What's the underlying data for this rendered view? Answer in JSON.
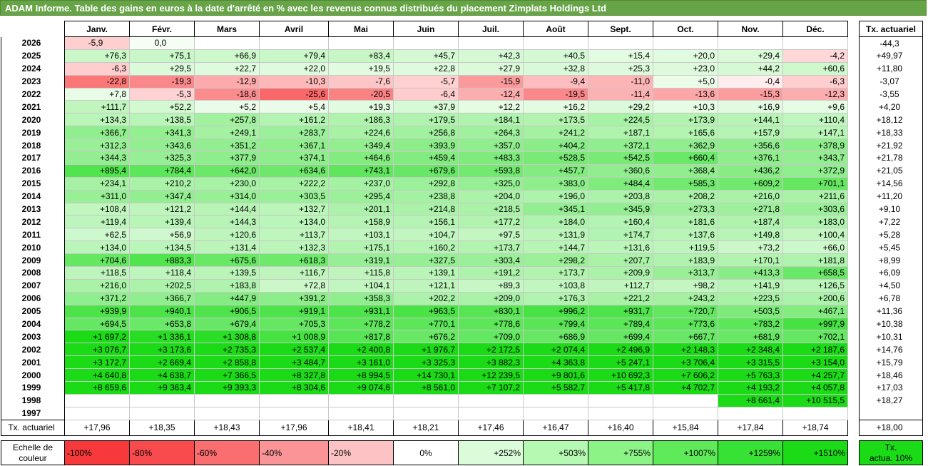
{
  "title": "ADAM Informe. Table des gains en euros à la date d'arrêté en % avec les revenus connus distribués du placement Zimplats Holdings Ltd",
  "headers": [
    "Janv.",
    "Févr.",
    "Mars",
    "Avril",
    "Mai",
    "Juin",
    "Juil.",
    "Août",
    "Sept.",
    "Oct.",
    "Nov.",
    "Déc."
  ],
  "rate_header": "Tx. actuariel",
  "rows": [
    {
      "year": "2026",
      "vals": [
        "-5,9",
        "0,0",
        "",
        "",
        "",
        "",
        "",
        "",
        "",
        "",
        "",
        ""
      ],
      "rate": "-44,3"
    },
    {
      "year": "2025",
      "vals": [
        "+76,3",
        "+75,1",
        "+66,9",
        "+79,4",
        "+83,4",
        "+45,7",
        "+42,3",
        "+40,5",
        "+15,4",
        "+20,0",
        "+29,4",
        "-4,2"
      ],
      "rate": "+49,97"
    },
    {
      "year": "2024",
      "vals": [
        "-6,3",
        "+29,5",
        "+22,7",
        "+22,0",
        "+19,5",
        "+22,8",
        "+27,9",
        "+32,8",
        "+25,3",
        "+23,0",
        "+44,2",
        "+60,6"
      ],
      "rate": "+11,80"
    },
    {
      "year": "2023",
      "vals": [
        "-22,8",
        "-19,3",
        "-12,9",
        "-10,3",
        "-7,6",
        "-5,7",
        "-15,9",
        "-9,4",
        "-11,0",
        "+5,0",
        "-0,4",
        "-6,3"
      ],
      "rate": "-3,07"
    },
    {
      "year": "2022",
      "vals": [
        "+7,8",
        "-5,3",
        "-18,6",
        "-25,6",
        "-20,5",
        "-6,4",
        "-12,4",
        "-19,5",
        "-11,4",
        "-13,6",
        "-15,3",
        "-12,3"
      ],
      "rate": "-3,55"
    },
    {
      "year": "2021",
      "vals": [
        "+111,7",
        "+52,2",
        "+5,2",
        "+5,4",
        "+19,3",
        "+37,9",
        "+12,2",
        "+16,2",
        "+29,2",
        "+10,3",
        "+16,9",
        "+9,6"
      ],
      "rate": "+4,20"
    },
    {
      "year": "2020",
      "vals": [
        "+134,3",
        "+138,5",
        "+257,8",
        "+161,2",
        "+186,3",
        "+179,5",
        "+184,1",
        "+173,5",
        "+224,5",
        "+173,9",
        "+144,1",
        "+110,4"
      ],
      "rate": "+18,12"
    },
    {
      "year": "2019",
      "vals": [
        "+366,7",
        "+341,3",
        "+249,1",
        "+283,7",
        "+224,6",
        "+256,8",
        "+264,3",
        "+241,2",
        "+187,1",
        "+165,6",
        "+157,9",
        "+147,1"
      ],
      "rate": "+18,33"
    },
    {
      "year": "2018",
      "vals": [
        "+312,3",
        "+343,6",
        "+351,2",
        "+367,1",
        "+349,4",
        "+393,9",
        "+357,0",
        "+404,2",
        "+372,1",
        "+362,9",
        "+356,6",
        "+378,9"
      ],
      "rate": "+21,92"
    },
    {
      "year": "2017",
      "vals": [
        "+344,3",
        "+325,3",
        "+377,9",
        "+374,1",
        "+464,6",
        "+459,4",
        "+483,3",
        "+528,5",
        "+542,5",
        "+660,4",
        "+376,1",
        "+343,7"
      ],
      "rate": "+21,78"
    },
    {
      "year": "2016",
      "vals": [
        "+895,4",
        "+784,4",
        "+642,0",
        "+634,6",
        "+743,1",
        "+679,6",
        "+593,8",
        "+457,7",
        "+360,6",
        "+368,4",
        "+436,2",
        "+372,9"
      ],
      "rate": "+21,05"
    },
    {
      "year": "2015",
      "vals": [
        "+234,1",
        "+210,2",
        "+230,0",
        "+222,2",
        "+237,0",
        "+292,8",
        "+325,0",
        "+383,0",
        "+484,4",
        "+585,3",
        "+609,2",
        "+701,1"
      ],
      "rate": "+14,56"
    },
    {
      "year": "2014",
      "vals": [
        "+311,0",
        "+347,4",
        "+314,0",
        "+303,5",
        "+295,4",
        "+238,8",
        "+204,0",
        "+196,0",
        "+203,8",
        "+208,2",
        "+216,0",
        "+211,6"
      ],
      "rate": "+11,20"
    },
    {
      "year": "2013",
      "vals": [
        "+108,4",
        "+121,2",
        "+144,4",
        "+132,7",
        "+201,1",
        "+214,8",
        "+218,5",
        "+345,1",
        "+345,9",
        "+273,3",
        "+271,8",
        "+303,6"
      ],
      "rate": "+9,10"
    },
    {
      "year": "2012",
      "vals": [
        "+119,4",
        "+139,4",
        "+144,3",
        "+134,0",
        "+158,9",
        "+156,1",
        "+177,2",
        "+184,0",
        "+160,4",
        "+181,6",
        "+187,4",
        "+183,0"
      ],
      "rate": "+7,22"
    },
    {
      "year": "2011",
      "vals": [
        "+62,5",
        "+56,9",
        "+120,6",
        "+113,7",
        "+103,1",
        "+104,7",
        "+97,5",
        "+131,9",
        "+174,7",
        "+137,6",
        "+149,8",
        "+100,4"
      ],
      "rate": "+5,28"
    },
    {
      "year": "2010",
      "vals": [
        "+134,0",
        "+134,5",
        "+131,4",
        "+132,3",
        "+175,1",
        "+160,2",
        "+173,7",
        "+144,7",
        "+131,6",
        "+119,5",
        "+73,2",
        "+66,0"
      ],
      "rate": "+5,45"
    },
    {
      "year": "2009",
      "vals": [
        "+704,6",
        "+883,3",
        "+675,6",
        "+618,3",
        "+319,1",
        "+327,5",
        "+303,4",
        "+298,2",
        "+207,7",
        "+183,9",
        "+170,1",
        "+181,8"
      ],
      "rate": "+8,99"
    },
    {
      "year": "2008",
      "vals": [
        "+118,5",
        "+118,4",
        "+139,5",
        "+116,7",
        "+115,8",
        "+139,1",
        "+191,2",
        "+173,7",
        "+209,9",
        "+313,7",
        "+413,3",
        "+658,5"
      ],
      "rate": "+6,09"
    },
    {
      "year": "2007",
      "vals": [
        "+216,0",
        "+202,5",
        "+183,8",
        "+72,8",
        "+104,1",
        "+121,1",
        "+89,3",
        "+103,8",
        "+112,7",
        "+98,2",
        "+141,9",
        "+126,5"
      ],
      "rate": "+4,50"
    },
    {
      "year": "2006",
      "vals": [
        "+371,2",
        "+366,7",
        "+447,9",
        "+391,2",
        "+358,3",
        "+202,2",
        "+209,0",
        "+176,3",
        "+221,2",
        "+243,2",
        "+223,5",
        "+200,6"
      ],
      "rate": "+6,78"
    },
    {
      "year": "2005",
      "vals": [
        "+939,9",
        "+940,1",
        "+906,5",
        "+919,1",
        "+931,1",
        "+963,5",
        "+830,1",
        "+996,2",
        "+931,7",
        "+720,7",
        "+503,5",
        "+467,1"
      ],
      "rate": "+11,36"
    },
    {
      "year": "2004",
      "vals": [
        "+694,5",
        "+653,8",
        "+679,4",
        "+705,3",
        "+778,2",
        "+770,1",
        "+778,6",
        "+799,4",
        "+789,4",
        "+773,6",
        "+783,2",
        "+997,9"
      ],
      "rate": "+10,38"
    },
    {
      "year": "2003",
      "vals": [
        "+1 697,2",
        "+1 336,1",
        "+1 308,8",
        "+1 008,9",
        "+817,8",
        "+676,2",
        "+709,0",
        "+686,9",
        "+699,4",
        "+667,7",
        "+681,9",
        "+702,1"
      ],
      "rate": "+10,31"
    },
    {
      "year": "2002",
      "vals": [
        "+3 076,7",
        "+3 173,6",
        "+2 735,3",
        "+2 537,4",
        "+2 400,8",
        "+1 976,7",
        "+2 172,5",
        "+2 074,4",
        "+2 496,9",
        "+2 148,3",
        "+2 348,4",
        "+2 187,6"
      ],
      "rate": "+14,76"
    },
    {
      "year": "2001",
      "vals": [
        "+3 172,7",
        "+2 669,4",
        "+2 858,8",
        "+3 484,7",
        "+3 161,0",
        "+3 325,3",
        "+3 882,3",
        "+4 363,8",
        "+5 247,1",
        "+3 706,4",
        "+3 315,5",
        "+3 154,0"
      ],
      "rate": "+15,79"
    },
    {
      "year": "2000",
      "vals": [
        "+4 640,8",
        "+4 638,7",
        "+7 366,5",
        "+8 327,8",
        "+8 994,5",
        "+14 730,1",
        "+12 239,5",
        "+9 801,6",
        "+10 692,3",
        "+7 606,2",
        "+5 763,3",
        "+4 257,7"
      ],
      "rate": "+18,46"
    },
    {
      "year": "1999",
      "vals": [
        "+8 659,6",
        "+9 363,4",
        "+9 393,3",
        "+8 304,6",
        "+9 074,6",
        "+8 561,0",
        "+7 107,2",
        "+5 582,7",
        "+5 417,8",
        "+4 702,7",
        "+4 193,2",
        "+4 057,8"
      ],
      "rate": "+17,03"
    },
    {
      "year": "1998",
      "vals": [
        "",
        "",
        "",
        "",
        "",
        "",
        "",
        "",
        "",
        "",
        "+8 661,4",
        "+10 515,5"
      ],
      "rate": "+18,27"
    },
    {
      "year": "1997",
      "vals": [
        "",
        "",
        "",
        "",
        "",
        "",
        "",
        "",
        "",
        "",
        "",
        ""
      ],
      "rate": ""
    }
  ],
  "footer": {
    "label": "Tx. actuariel",
    "vals": [
      "+17,96",
      "+18,35",
      "+18,43",
      "+17,96",
      "+18,41",
      "+18,21",
      "+17,46",
      "+16,47",
      "+16,40",
      "+15,84",
      "+17,84",
      "+18,74"
    ],
    "rate": "+18,00"
  },
  "scale": {
    "label_line1": "Echelle de",
    "label_line2": "couleur",
    "items": [
      "-100%",
      "-80%",
      "-60%",
      "-40%",
      "-20%",
      "0%",
      "+252%",
      "+503%",
      "+755%",
      "+1007%",
      "+1259%",
      "+1510%"
    ],
    "colors": [
      "#f8393c",
      "#f94b4d",
      "#fa6e70",
      "#fb9496",
      "#fdc3c4",
      "#ffffff",
      "#dafcd8",
      "#b6f9b2",
      "#8cf487",
      "#5feb59",
      "#38e234",
      "#1adb16"
    ],
    "last_line1": "Tx.",
    "last_line2": "actua. 10%",
    "last_color": "#1adb16"
  }
}
